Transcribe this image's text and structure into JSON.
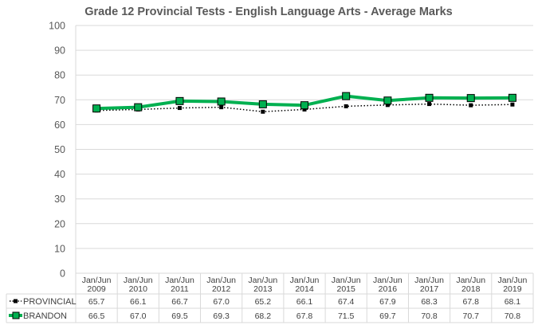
{
  "chart_data": {
    "type": "line",
    "title": "Grade 12 Provincial Tests - English Language Arts - Average Marks",
    "xlabel": "",
    "ylabel": "",
    "ylim": [
      0,
      100
    ],
    "yticks": [
      0,
      10,
      20,
      30,
      40,
      50,
      60,
      70,
      80,
      90,
      100
    ],
    "grid": true,
    "legend": "data-table",
    "categories": [
      [
        "Jan/Jun",
        "2009"
      ],
      [
        "Jan/Jun",
        "2010"
      ],
      [
        "Jan/Jun",
        "2011"
      ],
      [
        "Jan/Jun",
        "2012"
      ],
      [
        "Jan/Jun",
        "2013"
      ],
      [
        "Jan/Jun",
        "2014"
      ],
      [
        "Jan/Jun",
        "2015"
      ],
      [
        "Jan/Jun",
        "2016"
      ],
      [
        "Jan/Jun",
        "2017"
      ],
      [
        "Jan/Jun",
        "2018"
      ],
      [
        "Jan/Jun",
        "2019"
      ]
    ],
    "series": [
      {
        "name": "PROVINCIAL",
        "values": [
          65.7,
          66.1,
          66.7,
          67.0,
          65.2,
          66.1,
          67.4,
          67.9,
          68.3,
          67.8,
          68.1
        ],
        "labels": [
          "65.7",
          "66.1",
          "66.7",
          "67.0",
          "65.2",
          "66.1",
          "67.4",
          "67.9",
          "68.3",
          "67.8",
          "68.1"
        ],
        "color": "#000000",
        "style": "dotted"
      },
      {
        "name": "BRANDON",
        "values": [
          66.5,
          67.0,
          69.5,
          69.3,
          68.2,
          67.8,
          71.5,
          69.7,
          70.8,
          70.7,
          70.8
        ],
        "labels": [
          "66.5",
          "67.0",
          "69.5",
          "69.3",
          "68.2",
          "67.8",
          "71.5",
          "69.7",
          "70.8",
          "70.7",
          "70.8"
        ],
        "color": "#00b050",
        "style": "solid"
      }
    ]
  }
}
